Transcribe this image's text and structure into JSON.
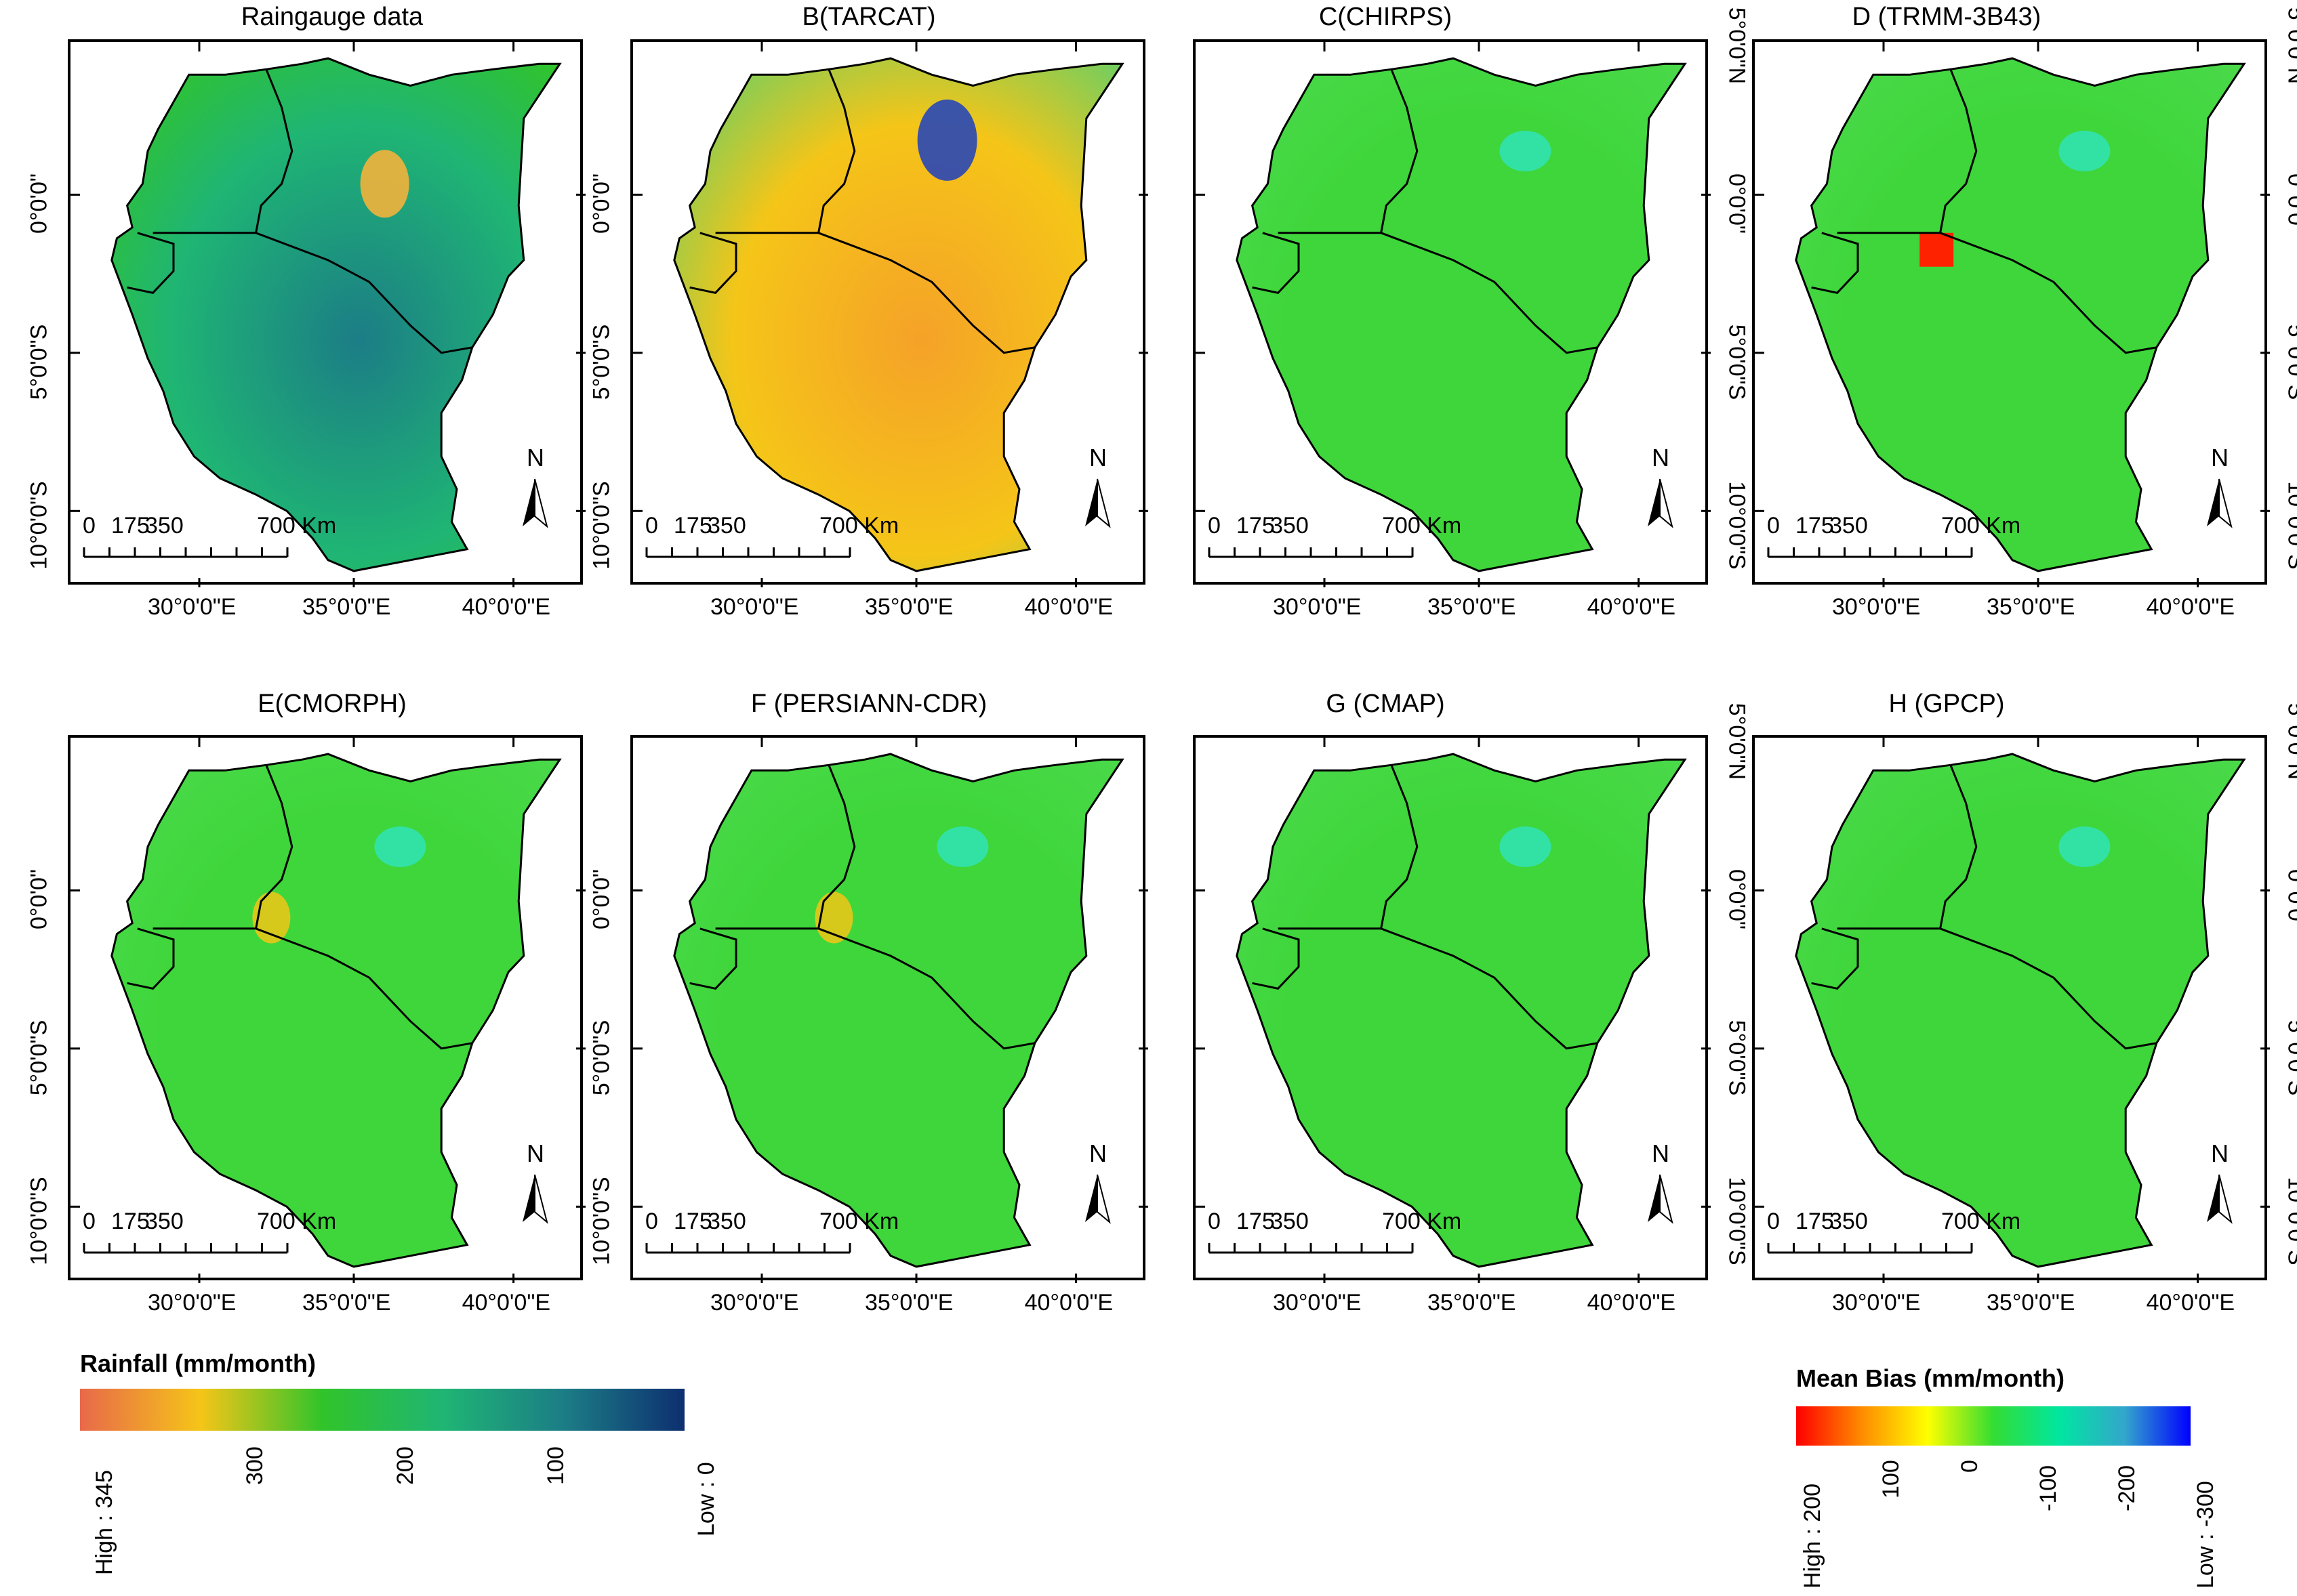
{
  "panels": [
    {
      "title": "Raingauge data",
      "type": "rainfall"
    },
    {
      "title": "B(TARCAT)",
      "type": "rainfall"
    },
    {
      "title": "C(CHIRPS)",
      "type": "bias"
    },
    {
      "title": "D (TRMM-3B43)",
      "type": "bias"
    },
    {
      "title": "E(CMORPH)",
      "type": "bias"
    },
    {
      "title": "F (PERSIANN-CDR)",
      "type": "bias"
    },
    {
      "title": "G (CMAP)",
      "type": "bias"
    },
    {
      "title": "H (GPCP)",
      "type": "bias"
    }
  ],
  "axes": {
    "lon_labels": [
      "30°0'0\"E",
      "35°0'0\"E",
      "40°0'0\"E"
    ],
    "lat_labels": [
      "5°0'0\"N",
      "0°0'0\"",
      "5°0'0\"S",
      "10°0'0\"S"
    ]
  },
  "scalebar": {
    "labels": [
      "0",
      "175",
      "350",
      "700 Km"
    ]
  },
  "north_arrow": {
    "label": "N"
  },
  "legend_rainfall": {
    "title": "Rainfall (mm/month)",
    "ticks": [
      "High : 345",
      "300",
      "200",
      "100",
      "Low : 0"
    ],
    "colors": [
      "#e8694a",
      "#f5c518",
      "#31c42a",
      "#1fb574",
      "#1c7d86",
      "#0d2f70"
    ]
  },
  "legend_bias": {
    "title": "Mean Bias (mm/month)",
    "ticks": [
      "High : 200",
      "100",
      "0",
      "-100",
      "-200",
      "Low : -300"
    ],
    "colors": [
      "#ff0000",
      "#ff8c00",
      "#ffff00",
      "#33dd33",
      "#00e6a0",
      "#33a6cc",
      "#0000ff"
    ]
  },
  "colors": {
    "green": "#3ed63a",
    "border": "#000000"
  }
}
